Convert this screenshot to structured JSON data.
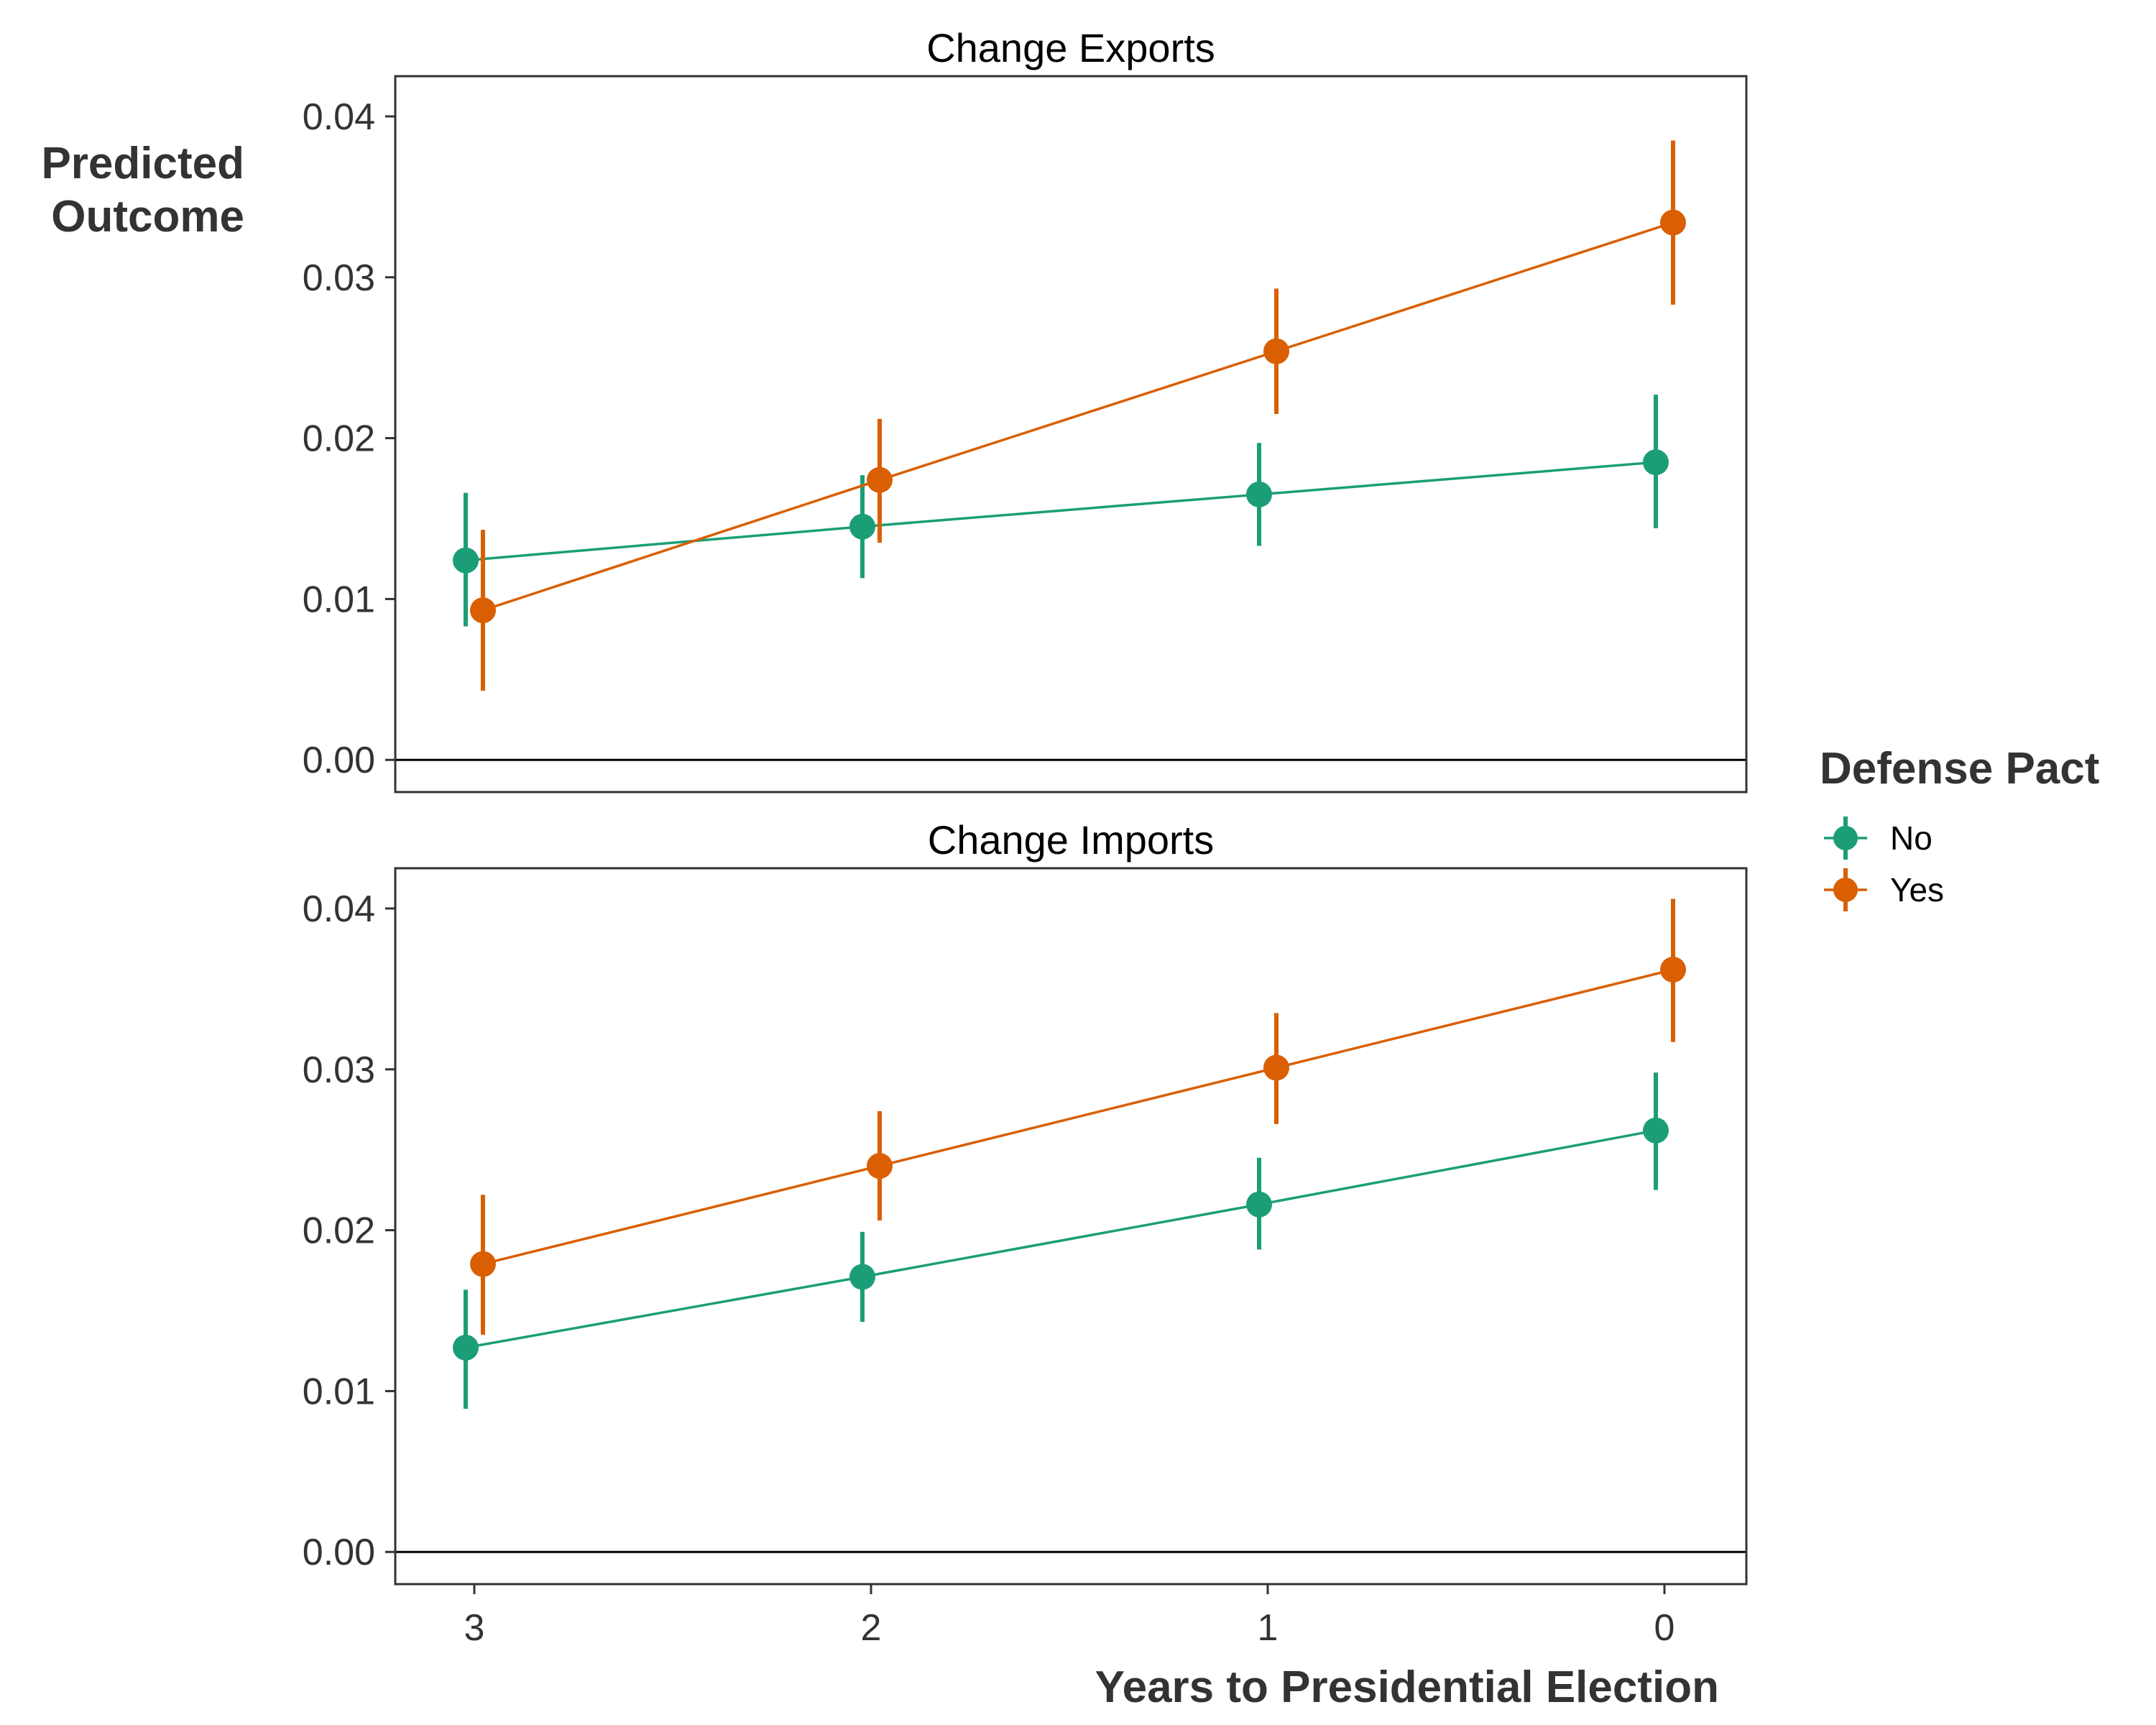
{
  "chart_data": {
    "type": "line",
    "ylabel": [
      "Predicted",
      "Outcome"
    ],
    "xlabel": "Years to Presidential Election",
    "x": [
      3,
      2,
      1,
      0
    ],
    "x_tick_labels": [
      "3",
      "2",
      "1",
      "0"
    ],
    "x_order": "descending",
    "ylim": [
      -0.002,
      0.0425
    ],
    "y_ticks": [
      0.0,
      0.01,
      0.02,
      0.03,
      0.04
    ],
    "y_tick_labels": [
      "0.00",
      "0.01",
      "0.02",
      "0.03",
      "0.04"
    ],
    "reference_line": 0,
    "grid": false,
    "legend": {
      "title": "Defense Pact",
      "position": "right",
      "entries": [
        "No",
        "Yes"
      ]
    },
    "colors": {
      "No": "#1b9e77",
      "Yes": "#d95f02",
      "axis": "#333333",
      "zero_line": "#000000"
    },
    "panels": [
      {
        "title": "Change Exports",
        "series": [
          {
            "name": "No",
            "values": [
              0.0124,
              0.0145,
              0.0165,
              0.0185
            ],
            "lower": [
              0.0083,
              0.0113,
              0.0133,
              0.0144
            ],
            "upper": [
              0.0166,
              0.0177,
              0.0197,
              0.0227
            ]
          },
          {
            "name": "Yes",
            "values": [
              0.0093,
              0.0174,
              0.0254,
              0.0334
            ],
            "lower": [
              0.0043,
              0.0135,
              0.0215,
              0.0283
            ],
            "upper": [
              0.0143,
              0.0212,
              0.0293,
              0.0385
            ]
          }
        ]
      },
      {
        "title": "Change Imports",
        "series": [
          {
            "name": "No",
            "values": [
              0.0127,
              0.0171,
              0.0216,
              0.0262
            ],
            "lower": [
              0.0089,
              0.0143,
              0.0188,
              0.0225
            ],
            "upper": [
              0.0163,
              0.0199,
              0.0245,
              0.0298
            ]
          },
          {
            "name": "Yes",
            "values": [
              0.0179,
              0.024,
              0.0301,
              0.0362
            ],
            "lower": [
              0.0135,
              0.0206,
              0.0266,
              0.0317
            ],
            "upper": [
              0.0222,
              0.0274,
              0.0335,
              0.0406
            ]
          }
        ]
      }
    ]
  }
}
